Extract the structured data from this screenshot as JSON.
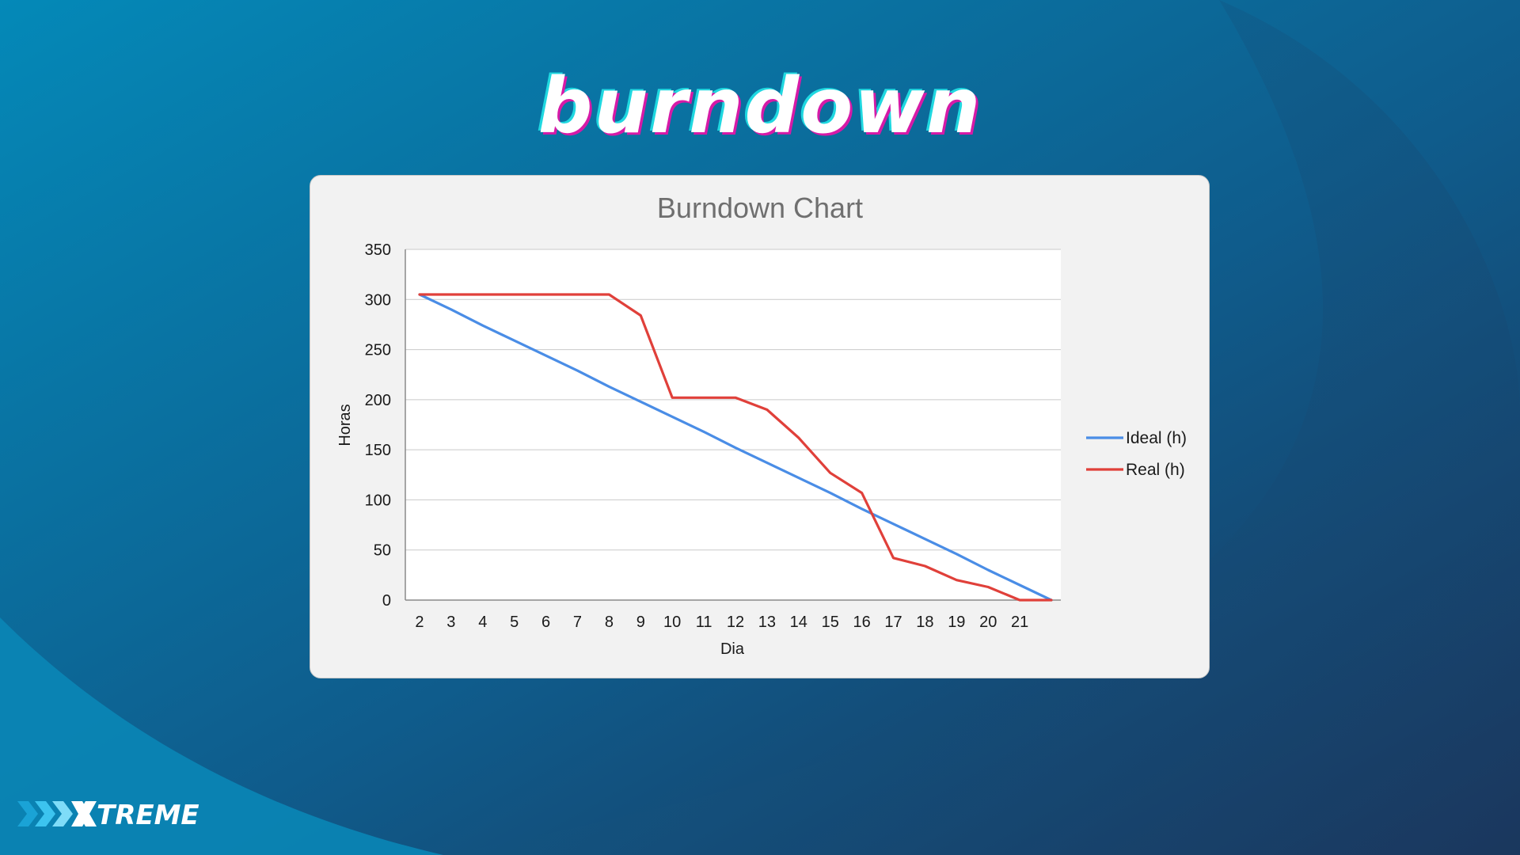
{
  "slide": {
    "title": "burndown"
  },
  "brand": {
    "logo_text": "TREME"
  },
  "colors": {
    "bg_light": "#0489b8",
    "bg_dark": "#1b3358",
    "ideal": "#4a8de6",
    "real": "#e0403a",
    "panel": "#f2f2f2",
    "plot": "#ffffff"
  },
  "chart_data": {
    "type": "line",
    "title": "Burndown Chart",
    "xlabel": "Dia",
    "ylabel": "Horas",
    "x": [
      2,
      3,
      4,
      5,
      6,
      7,
      8,
      9,
      10,
      11,
      12,
      13,
      14,
      15,
      16,
      17,
      18,
      19,
      20,
      21,
      22
    ],
    "x_tick_labels": [
      "2",
      "3",
      "4",
      "5",
      "6",
      "7",
      "8",
      "9",
      "10",
      "11",
      "12",
      "13",
      "14",
      "15",
      "16",
      "17",
      "18",
      "19",
      "20",
      "21"
    ],
    "ylim": [
      0,
      350
    ],
    "y_ticks": [
      "0",
      "50",
      "100",
      "150",
      "200",
      "250",
      "300",
      "350"
    ],
    "grid": true,
    "legend_position": "right",
    "series": [
      {
        "name": "Ideal (h)",
        "values": [
          305,
          290,
          274,
          259,
          244,
          229,
          213,
          198,
          183,
          168,
          152,
          137,
          122,
          107,
          91,
          76,
          61,
          46,
          30,
          15,
          0
        ]
      },
      {
        "name": "Real (h)",
        "values": [
          305,
          305,
          305,
          305,
          305,
          305,
          305,
          284,
          202,
          202,
          202,
          190,
          162,
          127,
          107,
          42,
          34,
          20,
          13,
          0,
          0
        ]
      }
    ]
  }
}
